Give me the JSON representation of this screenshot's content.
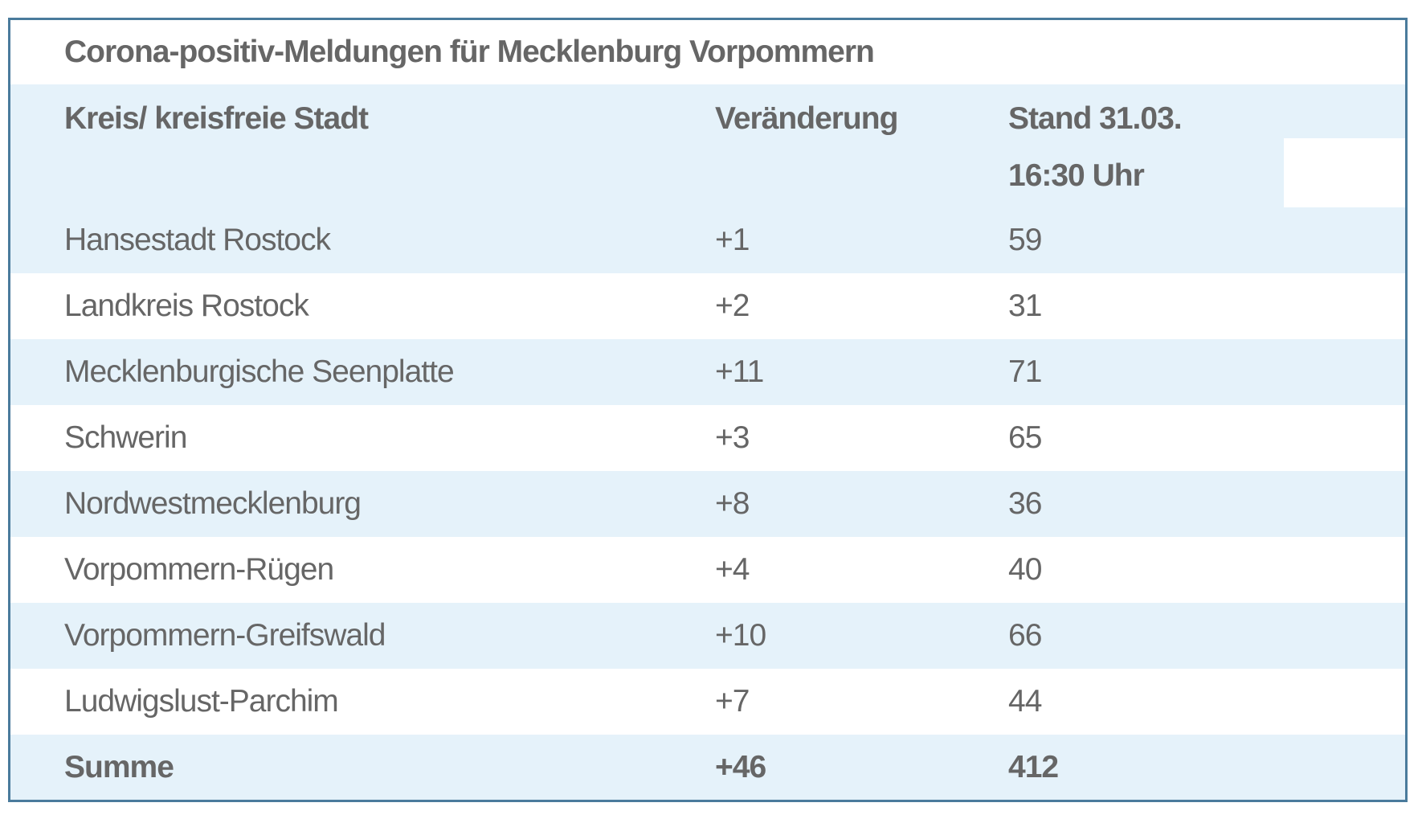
{
  "title": "Corona-positiv-Meldungen für Mecklenburg Vorpommern",
  "table": {
    "columns": {
      "district": "Kreis/ kreisfreie Stadt",
      "change": "Veränderung",
      "status_line1": "Stand 31.03.",
      "status_line2": "16:30 Uhr"
    },
    "rows": [
      {
        "district": "Hansestadt Rostock",
        "change": "+1",
        "count": "59"
      },
      {
        "district": "Landkreis Rostock",
        "change": "+2",
        "count": "31"
      },
      {
        "district": "Mecklenburgische Seenplatte",
        "change": "+11",
        "count": "71"
      },
      {
        "district": "Schwerin",
        "change": "+3",
        "count": "65"
      },
      {
        "district": "Nordwestmecklenburg",
        "change": "+8",
        "count": "36"
      },
      {
        "district": "Vorpommern-Rügen",
        "change": "+4",
        "count": "40"
      },
      {
        "district": "Vorpommern-Greifswald",
        "change": "+10",
        "count": "66"
      },
      {
        "district": "Ludwigslust-Parchim",
        "change": "+7",
        "count": "44"
      }
    ],
    "total": {
      "district": "Summe",
      "change": "+46",
      "count": "412"
    }
  },
  "colors": {
    "frame_border": "#4a7b9c",
    "row_highlight": "#e5f2fa",
    "text": "#666666",
    "background": "#ffffff"
  }
}
